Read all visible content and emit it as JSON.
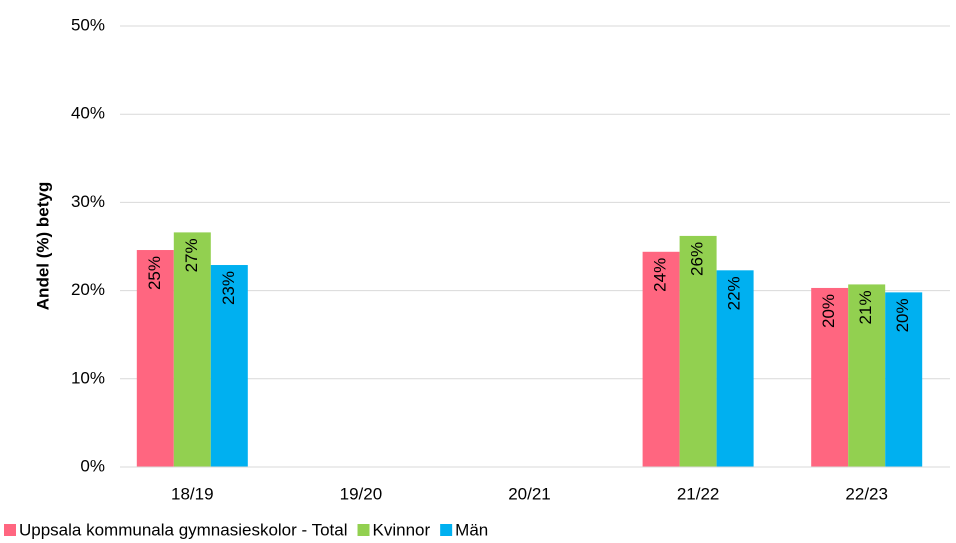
{
  "chart_data": {
    "type": "bar",
    "ylabel": "Andel (%) betyg",
    "categories": [
      "18/19",
      "19/20",
      "20/21",
      "21/22",
      "22/23"
    ],
    "series": [
      {
        "name": "Uppsala kommunala gymnasieskolor - Total",
        "color": "#ff6680",
        "values": [
          24.6,
          null,
          null,
          24.4,
          20.3
        ],
        "value_labels": [
          "25%",
          null,
          null,
          "24%",
          "20%"
        ]
      },
      {
        "name": "Kvinnor",
        "color": "#92d050",
        "values": [
          26.6,
          null,
          null,
          26.2,
          20.7
        ],
        "value_labels": [
          "27%",
          null,
          null,
          "26%",
          "21%"
        ]
      },
      {
        "name": "Män",
        "color": "#00b0f0",
        "values": [
          22.9,
          null,
          null,
          22.3,
          19.8
        ],
        "value_labels": [
          "23%",
          null,
          null,
          "22%",
          "20%"
        ]
      }
    ],
    "ylim": [
      0,
      50
    ],
    "yticks": [
      {
        "value": 0,
        "label": "0%"
      },
      {
        "value": 10,
        "label": "10%"
      },
      {
        "value": 20,
        "label": "20%"
      },
      {
        "value": 30,
        "label": "30%"
      },
      {
        "value": 40,
        "label": "40%"
      },
      {
        "value": 50,
        "label": "50%"
      }
    ],
    "grid": true,
    "legend": "bottom-left"
  }
}
